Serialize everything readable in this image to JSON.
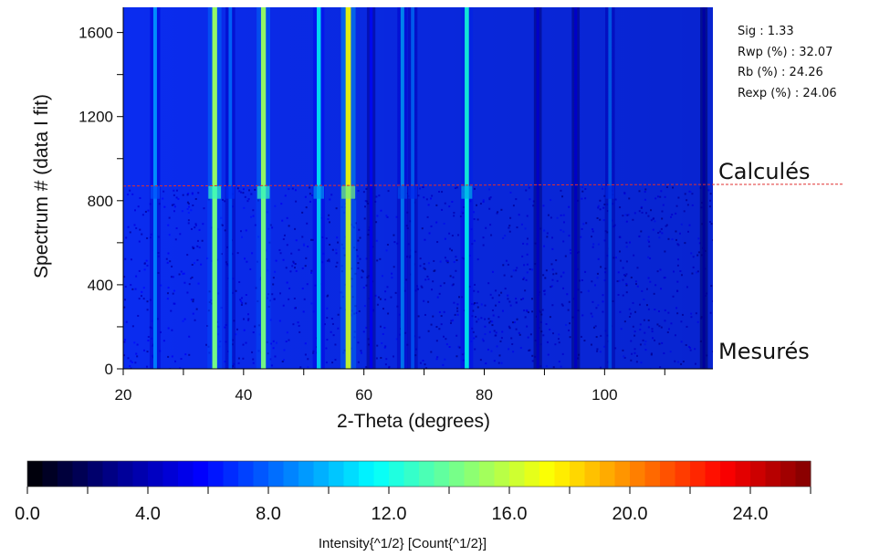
{
  "chart_data": [
    {
      "type": "heatmap",
      "title": "",
      "xlabel": "2-Theta (degrees)",
      "ylabel": "Spectrum # (data I fit)",
      "xlim": [
        20,
        118
      ],
      "ylim": [
        0,
        1720
      ],
      "x_ticks": [
        20,
        40,
        60,
        80,
        100
      ],
      "y_ticks": [
        0,
        400,
        800,
        1200,
        1600
      ],
      "split_spectrum": 870,
      "zone_labels": {
        "top": "Calculés",
        "bottom": "Mesurés"
      },
      "peaks": [
        {
          "two_theta": 25.3,
          "intensity": 9
        },
        {
          "two_theta": 35.2,
          "intensity": 15
        },
        {
          "two_theta": 37.8,
          "intensity": 8
        },
        {
          "two_theta": 43.3,
          "intensity": 15
        },
        {
          "two_theta": 52.5,
          "intensity": 11
        },
        {
          "two_theta": 57.4,
          "intensity": 17
        },
        {
          "two_theta": 61.2,
          "intensity": 6
        },
        {
          "two_theta": 66.4,
          "intensity": 9
        },
        {
          "two_theta": 68.1,
          "intensity": 8
        },
        {
          "two_theta": 77.1,
          "intensity": 12
        },
        {
          "two_theta": 88.9,
          "intensity": 5
        },
        {
          "two_theta": 95.2,
          "intensity": 5
        },
        {
          "two_theta": 100.9,
          "intensity": 8
        },
        {
          "two_theta": 116.5,
          "intensity": 4
        }
      ],
      "background_intensity": 4.5,
      "colormap": [
        "#000000",
        "#00008b",
        "#0000ff",
        "#0080ff",
        "#00ffff",
        "#80ff80",
        "#ffff00",
        "#ff8000",
        "#ff0000",
        "#800000"
      ],
      "grid": false
    },
    {
      "type": "colorbar",
      "xlabel": "Intensity{^1/2} [Count{^1/2}]",
      "xlim": [
        0,
        26
      ],
      "x_ticks": [
        0,
        4,
        8,
        12,
        16,
        20,
        24
      ],
      "x_tick_labels": [
        "0.0",
        "4.0",
        "8.0",
        "12.0",
        "16.0",
        "20.0",
        "24.0"
      ]
    }
  ],
  "stats": {
    "sig": "Sig : 1.33",
    "rwp": "Rwp (%) : 32.07",
    "rb": "Rb (%) : 24.26",
    "rexp": "Rexp (%) : 24.06"
  }
}
